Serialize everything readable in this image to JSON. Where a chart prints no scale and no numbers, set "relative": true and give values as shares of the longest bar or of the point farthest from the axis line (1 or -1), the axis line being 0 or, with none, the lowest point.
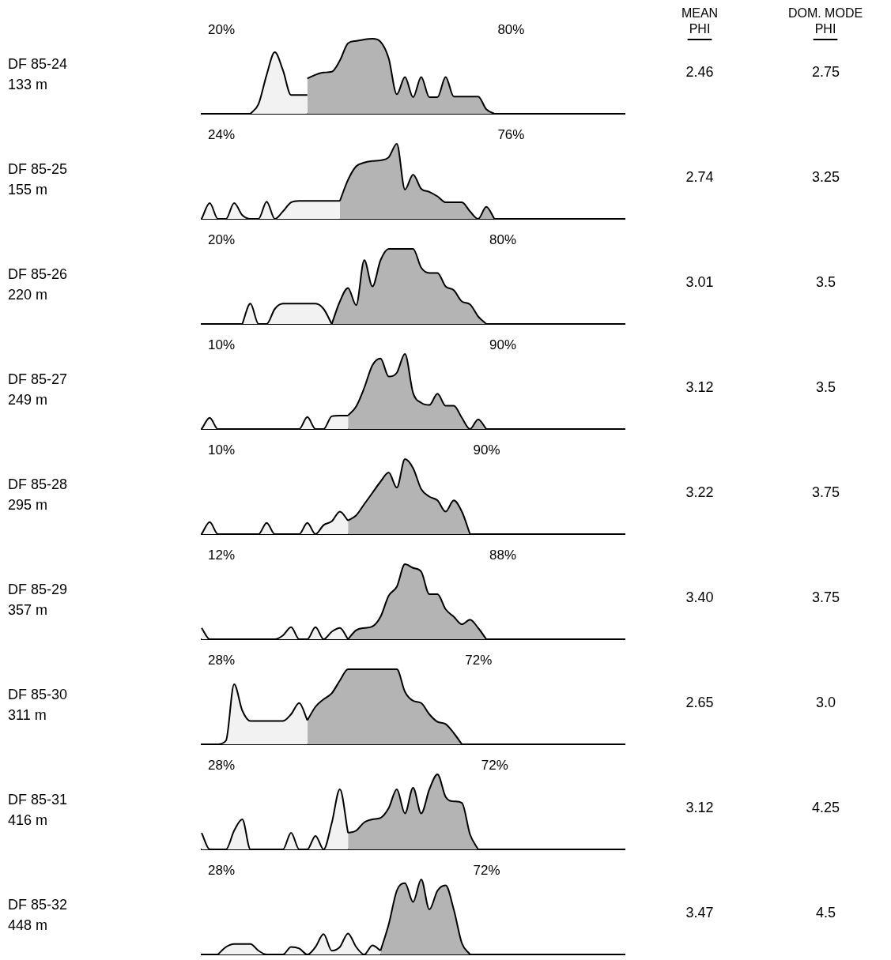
{
  "chart_data": [
    {
      "type": "other",
      "annotations": [
        "MEAN",
        "PHI",
        "DOM. MODE",
        "PHI"
      ]
    },
    {
      "type": "area",
      "relative": true,
      "annotations": [
        "DF 85-24",
        "133 m",
        "20%",
        "80%",
        "2.46",
        "2.75"
      ],
      "categories": [
        null,
        null,
        null,
        null,
        null,
        null,
        null,
        null,
        null,
        null,
        null,
        null,
        null,
        null,
        null,
        null,
        null,
        null,
        null,
        null,
        null,
        null,
        null,
        null,
        null,
        null,
        null,
        null,
        null,
        null,
        null,
        null,
        null,
        null,
        null,
        null,
        null,
        null,
        null,
        null,
        null,
        null,
        null,
        null,
        null,
        null,
        null,
        null,
        null,
        null,
        null,
        null,
        null
      ],
      "series": [
        {
          "color": "#f2f2f2",
          "values": [
            null,
            null,
            null,
            null,
            null,
            null,
            0,
            0.13,
            0.52,
            0.82,
            0.58,
            0.25,
            0.25,
            0.25,
            null,
            null,
            null,
            null,
            null,
            null,
            null,
            null,
            null,
            null,
            null,
            null,
            null,
            null,
            null,
            null,
            null,
            null,
            null,
            null,
            null,
            null,
            null,
            null,
            null,
            null,
            null,
            null,
            null,
            null,
            null,
            null,
            null,
            null,
            null,
            null,
            null,
            null,
            null
          ]
        },
        {
          "color": "#b4b4b4",
          "values": [
            null,
            null,
            null,
            null,
            null,
            null,
            null,
            null,
            null,
            null,
            null,
            null,
            null,
            0.47,
            0.52,
            0.55,
            0.56,
            0.71,
            0.94,
            0.97,
            0.99,
            1,
            0.96,
            0.74,
            0.26,
            0.49,
            0.22,
            0.49,
            0.22,
            0.22,
            0.49,
            0.23,
            0.23,
            0.23,
            0.23,
            0.06,
            0,
            null,
            null,
            null,
            null,
            null,
            null,
            null,
            null,
            null,
            null,
            null,
            null,
            null,
            null,
            null,
            null
          ]
        }
      ]
    },
    {
      "type": "area",
      "relative": true,
      "annotations": [
        "DF 85-25",
        "155 m",
        "24%",
        "76%",
        "2.74",
        "3.25"
      ],
      "categories": [
        null,
        null,
        null,
        null,
        null,
        null,
        null,
        null,
        null,
        null,
        null,
        null,
        null,
        null,
        null,
        null,
        null,
        null,
        null,
        null,
        null,
        null,
        null,
        null,
        null,
        null,
        null,
        null,
        null,
        null,
        null,
        null,
        null,
        null,
        null,
        null,
        null,
        null,
        null,
        null,
        null,
        null,
        null,
        null,
        null,
        null,
        null,
        null,
        null,
        null,
        null,
        null,
        null
      ],
      "series": [
        {
          "color": "#f2f2f2",
          "values": [
            0,
            0.21,
            0,
            0,
            0.21,
            0.05,
            0,
            0,
            0.23,
            0,
            0.1,
            0.22,
            0.24,
            0.24,
            0.24,
            0.24,
            0.24,
            0.24,
            null,
            null,
            null,
            null,
            null,
            null,
            null,
            null,
            null,
            null,
            null,
            null,
            null,
            null,
            null,
            null,
            null,
            null,
            null,
            null,
            null,
            null,
            null,
            null,
            null,
            null,
            null,
            null,
            null,
            null,
            null,
            null,
            null,
            null,
            null
          ]
        },
        {
          "color": "#b4b4b4",
          "values": [
            null,
            null,
            null,
            null,
            null,
            null,
            null,
            null,
            null,
            null,
            null,
            null,
            null,
            null,
            null,
            null,
            null,
            0.24,
            0.52,
            0.7,
            0.75,
            0.77,
            0.78,
            0.82,
            1,
            0.39,
            0.59,
            0.4,
            0.36,
            0.3,
            0.22,
            0.22,
            0.22,
            0.1,
            0,
            0.16,
            0,
            null,
            null,
            null,
            null,
            null,
            null,
            null,
            null,
            null,
            null,
            null,
            null,
            null,
            null,
            null,
            null
          ]
        }
      ]
    },
    {
      "type": "area",
      "relative": true,
      "annotations": [
        "DF 85-26",
        "220 m",
        "20%",
        "80%",
        "3.01",
        "3.5"
      ],
      "categories": [
        null,
        null,
        null,
        null,
        null,
        null,
        null,
        null,
        null,
        null,
        null,
        null,
        null,
        null,
        null,
        null,
        null,
        null,
        null,
        null,
        null,
        null,
        null,
        null,
        null,
        null,
        null,
        null,
        null,
        null,
        null,
        null,
        null,
        null,
        null,
        null,
        null,
        null,
        null,
        null,
        null,
        null,
        null,
        null,
        null,
        null,
        null,
        null,
        null,
        null,
        null,
        null,
        null
      ],
      "series": [
        {
          "color": "#f2f2f2",
          "values": [
            null,
            null,
            null,
            null,
            null,
            0,
            0.27,
            0,
            0,
            0.2,
            0.27,
            0.27,
            0.27,
            0.27,
            0.27,
            0.2,
            0,
            null,
            null,
            null,
            null,
            null,
            null,
            null,
            null,
            null,
            null,
            null,
            null,
            null,
            null,
            null,
            null,
            null,
            null,
            null,
            null,
            null,
            null,
            null,
            null,
            null,
            null,
            null,
            null,
            null,
            null,
            null,
            null,
            null,
            null,
            null,
            null
          ]
        },
        {
          "color": "#b4b4b4",
          "values": [
            null,
            null,
            null,
            null,
            null,
            null,
            null,
            null,
            null,
            null,
            null,
            null,
            null,
            null,
            null,
            null,
            0,
            0.3,
            0.48,
            0.25,
            0.85,
            0.5,
            0.85,
            1,
            1,
            1,
            1,
            0.75,
            0.68,
            0.68,
            0.5,
            0.45,
            0.3,
            0.26,
            0.1,
            0,
            null,
            null,
            null,
            null,
            null,
            null,
            null,
            null,
            null,
            null,
            null,
            null,
            null,
            null,
            null,
            null,
            null
          ]
        }
      ]
    },
    {
      "type": "area",
      "relative": true,
      "annotations": [
        "DF 85-27",
        "249 m",
        "10%",
        "90%",
        "3.12",
        "3.5"
      ],
      "categories": [
        null,
        null,
        null,
        null,
        null,
        null,
        null,
        null,
        null,
        null,
        null,
        null,
        null,
        null,
        null,
        null,
        null,
        null,
        null,
        null,
        null,
        null,
        null,
        null,
        null,
        null,
        null,
        null,
        null,
        null,
        null,
        null,
        null,
        null,
        null,
        null,
        null,
        null,
        null,
        null,
        null,
        null,
        null,
        null,
        null,
        null,
        null,
        null,
        null,
        null,
        null,
        null,
        null
      ],
      "series": [
        {
          "color": "#f2f2f2",
          "values": [
            0,
            0.15,
            0,
            0,
            0,
            0,
            0,
            0,
            0,
            0,
            0,
            0,
            0,
            0.16,
            0,
            0,
            0.17,
            0.18,
            0.18,
            null,
            null,
            null,
            null,
            null,
            null,
            null,
            null,
            null,
            null,
            null,
            null,
            null,
            null,
            null,
            null,
            null,
            null,
            null,
            null,
            null,
            null,
            null,
            null,
            null,
            null,
            null,
            null,
            null,
            null,
            null,
            null,
            null,
            null
          ]
        },
        {
          "color": "#b4b4b4",
          "values": [
            null,
            null,
            null,
            null,
            null,
            null,
            null,
            null,
            null,
            null,
            null,
            null,
            null,
            null,
            null,
            null,
            null,
            null,
            0.18,
            0.3,
            0.55,
            0.85,
            0.94,
            0.7,
            0.75,
            1,
            0.48,
            0.35,
            0.32,
            0.47,
            0.31,
            0.31,
            0.15,
            0,
            0.13,
            0,
            null,
            null,
            null,
            null,
            null,
            null,
            null,
            null,
            null,
            null,
            null,
            null,
            null,
            null,
            null,
            null,
            null
          ]
        }
      ]
    },
    {
      "type": "area",
      "relative": true,
      "annotations": [
        "DF 85-28",
        "295 m",
        "10%",
        "90%",
        "3.22",
        "3.75"
      ],
      "categories": [
        null,
        null,
        null,
        null,
        null,
        null,
        null,
        null,
        null,
        null,
        null,
        null,
        null,
        null,
        null,
        null,
        null,
        null,
        null,
        null,
        null,
        null,
        null,
        null,
        null,
        null,
        null,
        null,
        null,
        null,
        null,
        null,
        null,
        null,
        null,
        null,
        null,
        null,
        null,
        null,
        null,
        null,
        null,
        null,
        null,
        null,
        null,
        null,
        null,
        null,
        null,
        null,
        null
      ],
      "series": [
        {
          "color": "#f2f2f2",
          "values": [
            0,
            0.16,
            0,
            0,
            0,
            0,
            0,
            0,
            0.15,
            0,
            0,
            0,
            0,
            0.15,
            0,
            0.12,
            0.17,
            0.3,
            0.18,
            null,
            null,
            null,
            null,
            null,
            null,
            null,
            null,
            null,
            null,
            null,
            null,
            null,
            null,
            null,
            null,
            null,
            null,
            null,
            null,
            null,
            null,
            null,
            null,
            null,
            null,
            null,
            null,
            null,
            null,
            null,
            null,
            null,
            null
          ]
        },
        {
          "color": "#b4b4b4",
          "values": [
            null,
            null,
            null,
            null,
            null,
            null,
            null,
            null,
            null,
            null,
            null,
            null,
            null,
            null,
            null,
            null,
            null,
            null,
            0.18,
            0.25,
            0.4,
            0.55,
            0.7,
            0.82,
            0.62,
            1,
            0.88,
            0.6,
            0.5,
            0.45,
            0.3,
            0.45,
            0.3,
            0,
            null,
            null,
            null,
            null,
            null,
            null,
            null,
            null,
            null,
            null,
            null,
            null,
            null,
            null,
            null,
            null,
            null,
            null,
            null
          ]
        }
      ]
    },
    {
      "type": "area",
      "relative": true,
      "annotations": [
        "DF 85-29",
        "357 m",
        "12%",
        "88%",
        "3.40",
        "3.75"
      ],
      "categories": [
        null,
        null,
        null,
        null,
        null,
        null,
        null,
        null,
        null,
        null,
        null,
        null,
        null,
        null,
        null,
        null,
        null,
        null,
        null,
        null,
        null,
        null,
        null,
        null,
        null,
        null,
        null,
        null,
        null,
        null,
        null,
        null,
        null,
        null,
        null,
        null,
        null,
        null,
        null,
        null,
        null,
        null,
        null,
        null,
        null,
        null,
        null,
        null,
        null,
        null,
        null,
        null,
        null
      ],
      "series": [
        {
          "color": "#f2f2f2",
          "values": [
            0.15,
            0,
            0,
            0,
            0,
            0,
            0,
            0,
            0,
            0,
            0.05,
            0.16,
            0,
            0,
            0.16,
            0,
            0.1,
            0.15,
            0,
            null,
            null,
            null,
            null,
            null,
            null,
            null,
            null,
            null,
            null,
            null,
            null,
            null,
            null,
            null,
            null,
            null,
            null,
            null,
            null,
            null,
            null,
            null,
            null,
            null,
            null,
            null,
            null,
            null,
            null,
            null,
            null,
            null,
            null
          ]
        },
        {
          "color": "#b4b4b4",
          "values": [
            null,
            null,
            null,
            null,
            null,
            null,
            null,
            null,
            null,
            null,
            null,
            null,
            null,
            null,
            null,
            null,
            null,
            null,
            0,
            0.12,
            0.15,
            0.17,
            0.3,
            0.58,
            0.7,
            1,
            0.95,
            0.9,
            0.6,
            0.6,
            0.4,
            0.3,
            0.2,
            0.26,
            0.15,
            0,
            null,
            null,
            null,
            null,
            null,
            null,
            null,
            null,
            null,
            null,
            null,
            null,
            null,
            null,
            null,
            null,
            null
          ]
        }
      ]
    },
    {
      "type": "area",
      "relative": true,
      "annotations": [
        "DF 85-30",
        "311 m",
        "28%",
        "72%",
        "2.65",
        "3.0"
      ],
      "categories": [
        null,
        null,
        null,
        null,
        null,
        null,
        null,
        null,
        null,
        null,
        null,
        null,
        null,
        null,
        null,
        null,
        null,
        null,
        null,
        null,
        null,
        null,
        null,
        null,
        null,
        null,
        null,
        null,
        null,
        null,
        null,
        null,
        null,
        null,
        null,
        null,
        null,
        null,
        null,
        null,
        null,
        null,
        null,
        null,
        null,
        null,
        null,
        null,
        null,
        null,
        null,
        null,
        null
      ],
      "series": [
        {
          "color": "#f2f2f2",
          "values": [
            null,
            null,
            0,
            0.05,
            0.8,
            0.45,
            0.31,
            0.31,
            0.31,
            0.31,
            0.31,
            0.4,
            0.55,
            0.32,
            null,
            null,
            null,
            null,
            null,
            null,
            null,
            null,
            null,
            null,
            null,
            null,
            null,
            null,
            null,
            null,
            null,
            null,
            null,
            null,
            null,
            null,
            null,
            null,
            null,
            null,
            null,
            null,
            null,
            null,
            null,
            null,
            null,
            null,
            null,
            null,
            null,
            null,
            null
          ]
        },
        {
          "color": "#b4b4b4",
          "values": [
            null,
            null,
            null,
            null,
            null,
            null,
            null,
            null,
            null,
            null,
            null,
            null,
            null,
            0.32,
            0.5,
            0.6,
            0.68,
            0.85,
            1,
            1,
            1,
            1,
            1,
            1,
            1,
            0.7,
            0.58,
            0.55,
            0.4,
            0.3,
            0.27,
            0.15,
            0,
            null,
            null,
            null,
            null,
            null,
            null,
            null,
            null,
            null,
            null,
            null,
            null,
            null,
            null,
            null,
            null,
            null,
            null,
            null,
            null
          ]
        }
      ]
    },
    {
      "type": "area",
      "relative": true,
      "annotations": [
        "DF 85-31",
        "416 m",
        "28%",
        "72%",
        "3.12",
        "4.25"
      ],
      "categories": [
        null,
        null,
        null,
        null,
        null,
        null,
        null,
        null,
        null,
        null,
        null,
        null,
        null,
        null,
        null,
        null,
        null,
        null,
        null,
        null,
        null,
        null,
        null,
        null,
        null,
        null,
        null,
        null,
        null,
        null,
        null,
        null,
        null,
        null,
        null,
        null,
        null,
        null,
        null,
        null,
        null,
        null,
        null,
        null,
        null,
        null,
        null,
        null,
        null,
        null,
        null,
        null,
        null
      ],
      "series": [
        {
          "color": "#f2f2f2",
          "values": [
            0.22,
            0,
            0,
            0,
            0.25,
            0.4,
            0,
            0,
            0,
            0,
            0,
            0.22,
            0,
            0,
            0.18,
            0,
            0.35,
            0.8,
            0.22,
            null,
            null,
            null,
            null,
            null,
            null,
            null,
            null,
            null,
            null,
            null,
            null,
            null,
            null,
            null,
            null,
            null,
            null,
            null,
            null,
            null,
            null,
            null,
            null,
            null,
            null,
            null,
            null,
            null,
            null,
            null,
            null,
            null,
            null
          ]
        },
        {
          "color": "#b4b4b4",
          "values": [
            null,
            null,
            null,
            null,
            null,
            null,
            null,
            null,
            null,
            null,
            null,
            null,
            null,
            null,
            null,
            null,
            null,
            null,
            0.22,
            0.25,
            0.36,
            0.4,
            0.42,
            0.55,
            0.8,
            0.48,
            0.82,
            0.48,
            0.8,
            1,
            0.7,
            0.64,
            0.62,
            0.2,
            0,
            null,
            null,
            null,
            null,
            null,
            null,
            null,
            null,
            null,
            null,
            null,
            null,
            null,
            null,
            null,
            null,
            null,
            null
          ]
        }
      ]
    },
    {
      "type": "area",
      "relative": true,
      "annotations": [
        "DF 85-32",
        "448 m",
        "28%",
        "72%",
        "3.47",
        "4.5"
      ],
      "categories": [
        null,
        null,
        null,
        null,
        null,
        null,
        null,
        null,
        null,
        null,
        null,
        null,
        null,
        null,
        null,
        null,
        null,
        null,
        null,
        null,
        null,
        null,
        null,
        null,
        null,
        null,
        null,
        null,
        null,
        null,
        null,
        null,
        null,
        null,
        null,
        null,
        null,
        null,
        null,
        null,
        null,
        null,
        null,
        null,
        null,
        null,
        null,
        null,
        null,
        null,
        null,
        null,
        null
      ],
      "series": [
        {
          "color": "#f2f2f2",
          "values": [
            null,
            null,
            0,
            0.1,
            0.14,
            0.14,
            0.14,
            0.05,
            0,
            0,
            0,
            0.1,
            0.08,
            0,
            0.1,
            0.27,
            0.05,
            0.1,
            0.28,
            0.1,
            0,
            0.12,
            0.05,
            null,
            null,
            null,
            null,
            null,
            null,
            null,
            null,
            null,
            null,
            null,
            null,
            null,
            null,
            null,
            null,
            null,
            null,
            null,
            null,
            null,
            null,
            null,
            null,
            null,
            null,
            null,
            null,
            null,
            null
          ]
        },
        {
          "color": "#b4b4b4",
          "values": [
            null,
            null,
            null,
            null,
            null,
            null,
            null,
            null,
            null,
            null,
            null,
            null,
            null,
            null,
            null,
            null,
            null,
            null,
            null,
            null,
            null,
            null,
            0.05,
            0.4,
            0.85,
            0.95,
            0.7,
            1,
            0.6,
            0.85,
            0.92,
            0.6,
            0.15,
            0,
            null,
            null,
            null,
            null,
            null,
            null,
            null,
            null,
            null,
            null,
            null,
            null,
            null,
            null,
            null,
            null,
            null,
            null,
            null
          ]
        }
      ]
    }
  ]
}
